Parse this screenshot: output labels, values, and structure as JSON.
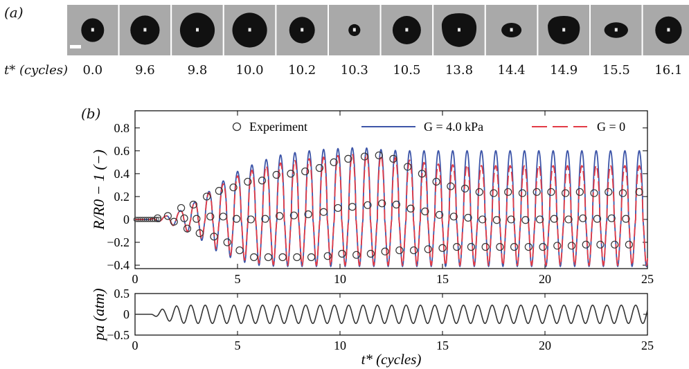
{
  "panel_a": {
    "label": "(a)",
    "time_axis_label": "t* (cycles)",
    "frames": [
      {
        "t": "0.0",
        "w": 0.5,
        "h": 0.52,
        "shape": "circle"
      },
      {
        "t": "9.6",
        "w": 0.64,
        "h": 0.64,
        "shape": "circle"
      },
      {
        "t": "9.8",
        "w": 0.76,
        "h": 0.76,
        "shape": "circle"
      },
      {
        "t": "10.0",
        "w": 0.76,
        "h": 0.76,
        "shape": "circle"
      },
      {
        "t": "10.2",
        "w": 0.56,
        "h": 0.58,
        "shape": "circle"
      },
      {
        "t": "10.3",
        "w": 0.26,
        "h": 0.26,
        "shape": "circle"
      },
      {
        "t": "10.5",
        "w": 0.62,
        "h": 0.62,
        "shape": "circle"
      },
      {
        "t": "13.8",
        "w": 0.76,
        "h": 0.74,
        "shape": "blob"
      },
      {
        "t": "14.4",
        "w": 0.44,
        "h": 0.32,
        "shape": "oval"
      },
      {
        "t": "14.9",
        "w": 0.7,
        "h": 0.62,
        "shape": "blob"
      },
      {
        "t": "15.5",
        "w": 0.52,
        "h": 0.34,
        "shape": "oval"
      },
      {
        "t": "16.1",
        "w": 0.58,
        "h": 0.6,
        "shape": "circle"
      }
    ]
  },
  "panel_b": {
    "label": "(b)"
  },
  "chart_data": [
    {
      "type": "line",
      "id": "R",
      "ylabel": "R/R0 − 1 (−)",
      "xlim": [
        0,
        25
      ],
      "ylim": [
        -0.43,
        0.95
      ],
      "xticks": [
        0,
        5,
        10,
        15,
        20,
        25
      ],
      "yticks": [
        -0.4,
        -0.2,
        0,
        0.2,
        0.4,
        0.6,
        0.8
      ],
      "ytick_labels": [
        "−0.4",
        "−0.2",
        "0",
        "0.2",
        "0.4",
        "0.6",
        "0.8"
      ],
      "legend": {
        "placement": "top",
        "entries": [
          "Experiment",
          "G = 4.0 kPa",
          "G = 0"
        ]
      },
      "series": [
        {
          "name": "Experiment",
          "style": "circles",
          "color": "#333333",
          "peaks": [
            [
              1.1,
              0.01
            ],
            [
              1.6,
              0.03
            ],
            [
              2.25,
              0.1
            ],
            [
              2.85,
              0.13
            ],
            [
              3.5,
              0.2
            ],
            [
              4.1,
              0.25
            ],
            [
              4.8,
              0.28
            ],
            [
              5.5,
              0.33
            ],
            [
              6.2,
              0.34
            ],
            [
              6.9,
              0.39
            ],
            [
              7.6,
              0.4
            ],
            [
              8.3,
              0.42
            ],
            [
              9.0,
              0.45
            ],
            [
              9.7,
              0.5
            ],
            [
              10.4,
              0.53
            ],
            [
              11.2,
              0.55
            ],
            [
              11.9,
              0.56
            ],
            [
              12.6,
              0.53
            ],
            [
              13.3,
              0.46
            ],
            [
              14.0,
              0.4
            ],
            [
              14.7,
              0.33
            ],
            [
              15.4,
              0.29
            ],
            [
              16.1,
              0.27
            ],
            [
              16.8,
              0.24
            ],
            [
              17.5,
              0.23
            ],
            [
              18.2,
              0.24
            ],
            [
              18.9,
              0.23
            ],
            [
              19.6,
              0.24
            ],
            [
              20.3,
              0.24
            ],
            [
              21.0,
              0.23
            ],
            [
              21.7,
              0.24
            ],
            [
              22.4,
              0.23
            ],
            [
              23.1,
              0.24
            ],
            [
              23.8,
              0.23
            ],
            [
              24.6,
              0.24
            ]
          ],
          "troughs": [
            [
              1.9,
              -0.02
            ],
            [
              2.55,
              -0.08
            ],
            [
              3.15,
              -0.12
            ],
            [
              3.85,
              -0.15
            ],
            [
              4.5,
              -0.2
            ],
            [
              5.1,
              -0.27
            ],
            [
              5.8,
              -0.33
            ],
            [
              6.5,
              -0.33
            ],
            [
              7.2,
              -0.33
            ],
            [
              7.9,
              -0.33
            ],
            [
              8.6,
              -0.33
            ],
            [
              9.4,
              -0.32
            ],
            [
              10.1,
              -0.3
            ],
            [
              10.8,
              -0.31
            ],
            [
              11.5,
              -0.3
            ],
            [
              12.2,
              -0.28
            ],
            [
              12.9,
              -0.27
            ],
            [
              13.6,
              -0.27
            ],
            [
              14.3,
              -0.26
            ],
            [
              15.0,
              -0.25
            ],
            [
              15.7,
              -0.24
            ],
            [
              16.4,
              -0.24
            ],
            [
              17.1,
              -0.24
            ],
            [
              17.8,
              -0.24
            ],
            [
              18.5,
              -0.24
            ],
            [
              19.2,
              -0.24
            ],
            [
              19.9,
              -0.24
            ],
            [
              20.6,
              -0.23
            ],
            [
              21.3,
              -0.23
            ],
            [
              22.0,
              -0.22
            ],
            [
              22.7,
              -0.22
            ],
            [
              23.4,
              -0.22
            ],
            [
              24.1,
              -0.22
            ]
          ]
        },
        {
          "name": "G = 4.0 kPa",
          "style": "solid",
          "color": "#3d55a8",
          "amplitude_envelope": [
            [
              0,
              0.0
            ],
            [
              1,
              0.01
            ],
            [
              1.5,
              0.03
            ],
            [
              2,
              0.06
            ],
            [
              2.5,
              0.1
            ],
            [
              3,
              0.16
            ],
            [
              3.5,
              0.23
            ],
            [
              4,
              0.3
            ],
            [
              5,
              0.42
            ],
            [
              6,
              0.5
            ],
            [
              7,
              0.56
            ],
            [
              8,
              0.59
            ],
            [
              9,
              0.61
            ],
            [
              10,
              0.62
            ],
            [
              11,
              0.63
            ],
            [
              12,
              0.61
            ],
            [
              13,
              0.6
            ],
            [
              14,
              0.6
            ],
            [
              25,
              0.6
            ]
          ],
          "trough_envelope": [
            [
              0,
              0.0
            ],
            [
              1,
              -0.01
            ],
            [
              2,
              -0.06
            ],
            [
              3,
              -0.15
            ],
            [
              4,
              -0.28
            ],
            [
              5,
              -0.36
            ],
            [
              6,
              -0.4
            ],
            [
              7,
              -0.41
            ],
            [
              25,
              -0.41
            ]
          ]
        },
        {
          "name": "G = 0",
          "style": "dashed",
          "color": "#e23a45",
          "amplitude_envelope": [
            [
              0,
              0.0
            ],
            [
              1,
              0.01
            ],
            [
              1.5,
              0.03
            ],
            [
              2,
              0.06
            ],
            [
              2.5,
              0.1
            ],
            [
              3,
              0.16
            ],
            [
              3.5,
              0.22
            ],
            [
              4,
              0.28
            ],
            [
              5,
              0.38
            ],
            [
              6,
              0.45
            ],
            [
              7,
              0.49
            ],
            [
              8,
              0.52
            ],
            [
              9,
              0.54
            ],
            [
              10,
              0.56
            ],
            [
              11,
              0.58
            ],
            [
              12,
              0.56
            ],
            [
              13,
              0.53
            ],
            [
              14,
              0.5
            ],
            [
              15,
              0.48
            ],
            [
              17,
              0.47
            ],
            [
              25,
              0.47
            ]
          ],
          "trough_envelope": [
            [
              0,
              0.0
            ],
            [
              1,
              -0.01
            ],
            [
              2,
              -0.06
            ],
            [
              3,
              -0.14
            ],
            [
              4,
              -0.26
            ],
            [
              5,
              -0.34
            ],
            [
              6,
              -0.38
            ],
            [
              7,
              -0.4
            ],
            [
              25,
              -0.4
            ]
          ]
        }
      ]
    },
    {
      "type": "line",
      "id": "pa",
      "xlabel": "t* (cycles)",
      "ylabel": "pa (atm)",
      "xlim": [
        0,
        25
      ],
      "ylim": [
        -0.5,
        0.5
      ],
      "xticks": [
        0,
        5,
        10,
        15,
        20,
        25
      ],
      "yticks": [
        -0.5,
        0,
        0.5
      ],
      "ytick_labels": [
        "−0.5",
        "0",
        "0.5"
      ],
      "series": [
        {
          "name": "pa",
          "style": "solid",
          "color": "#333333",
          "period": 0.7,
          "onset": 0.8,
          "amplitude_envelope": [
            [
              0,
              0.0
            ],
            [
              0.8,
              0.0
            ],
            [
              1.3,
              0.12
            ],
            [
              2.0,
              0.2
            ],
            [
              2.5,
              0.22
            ],
            [
              25,
              0.22
            ]
          ]
        }
      ]
    }
  ]
}
